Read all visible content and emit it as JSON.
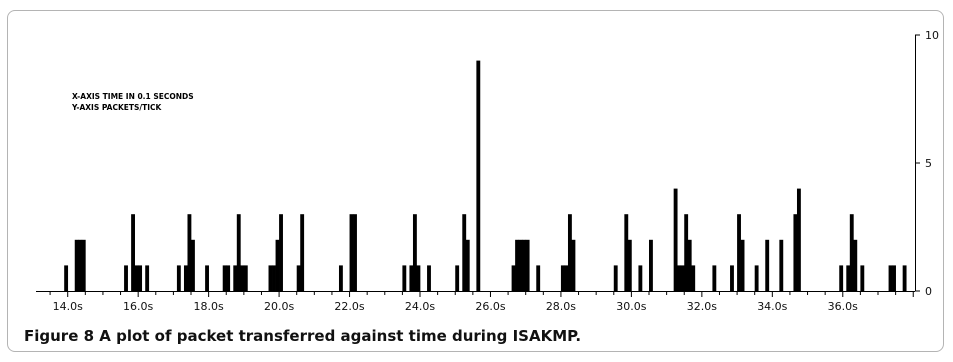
{
  "caption": "Figure 8 A plot of packet transferred against time during ISAKMP.",
  "chart_data": {
    "type": "bar",
    "annotations": [
      "X-AXIS TIME IN 0.1 SECONDS",
      "Y-AXIS  PACKETS/TICK"
    ],
    "xlim": [
      13.1,
      38.05
    ],
    "ylim": [
      0,
      10
    ],
    "x_ticks": [
      {
        "value": 14.0,
        "label": "14.0s"
      },
      {
        "value": 16.0,
        "label": "16.0s"
      },
      {
        "value": 18.0,
        "label": "18.0s"
      },
      {
        "value": 20.0,
        "label": "20.0s"
      },
      {
        "value": 22.0,
        "label": "22.0s"
      },
      {
        "value": 24.0,
        "label": "24.0s"
      },
      {
        "value": 26.0,
        "label": "26.0s"
      },
      {
        "value": 28.0,
        "label": "28.0s"
      },
      {
        "value": 30.0,
        "label": "30.0s"
      },
      {
        "value": 32.0,
        "label": "32.0s"
      },
      {
        "value": 34.0,
        "label": "34.0s"
      },
      {
        "value": 36.0,
        "label": "36.0s"
      }
    ],
    "y_ticks": [
      {
        "value": 0,
        "label": "0"
      },
      {
        "value": 5,
        "label": "5"
      },
      {
        "value": 10,
        "label": "10"
      }
    ],
    "series": [
      {
        "bar_width": 0.1,
        "x": [
          13.95,
          14.25,
          14.35,
          14.45,
          15.65,
          15.85,
          15.95,
          16.05,
          16.25,
          17.15,
          17.35,
          17.45,
          17.55,
          17.95,
          18.45,
          18.55,
          18.75,
          18.85,
          18.95,
          19.05,
          19.75,
          19.85,
          19.95,
          20.05,
          20.55,
          20.65,
          21.75,
          22.05,
          22.15,
          23.55,
          23.75,
          23.85,
          23.95,
          24.25,
          25.05,
          25.25,
          25.35,
          25.65,
          26.65,
          26.75,
          26.85,
          26.95,
          27.05,
          27.35,
          28.05,
          28.15,
          28.25,
          28.35,
          29.55,
          29.85,
          29.95,
          30.25,
          30.55,
          31.25,
          31.35,
          31.45,
          31.55,
          31.65,
          31.75,
          32.35,
          32.85,
          33.05,
          33.15,
          33.55,
          33.85,
          34.25,
          34.65,
          34.75,
          35.95,
          36.15,
          36.25,
          36.35,
          36.55,
          37.35,
          37.45,
          37.75
        ],
        "y": [
          1,
          2,
          2,
          2,
          1,
          3,
          1,
          1,
          1,
          1,
          1,
          3,
          2,
          1,
          1,
          1,
          1,
          3,
          1,
          1,
          1,
          1,
          2,
          3,
          1,
          3,
          1,
          3,
          3,
          1,
          1,
          3,
          1,
          1,
          1,
          3,
          2,
          9,
          1,
          2,
          2,
          2,
          2,
          1,
          1,
          1,
          3,
          2,
          1,
          3,
          2,
          1,
          2,
          4,
          1,
          1,
          3,
          2,
          1,
          1,
          1,
          3,
          2,
          1,
          2,
          2,
          3,
          4,
          1,
          1,
          3,
          2,
          1,
          1,
          1,
          1
        ]
      }
    ]
  }
}
